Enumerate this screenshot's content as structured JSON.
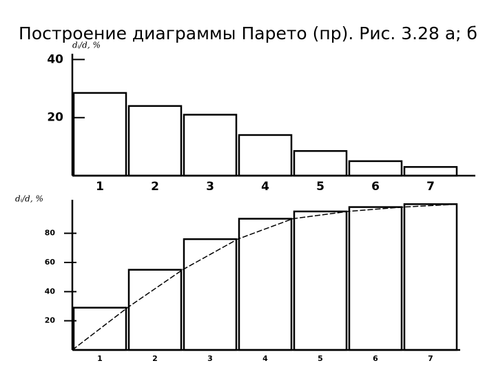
{
  "title": "Построение диаграммы Парето (пр). Рис. 3.28 а; б",
  "chart_data": [
    {
      "type": "bar",
      "y_label": "dᵢ/d, %",
      "categories": [
        "1",
        "2",
        "3",
        "4",
        "5",
        "6",
        "7"
      ],
      "values": [
        28.5,
        24,
        21,
        14,
        8.5,
        5,
        3
      ],
      "color": "#000000",
      "ylim": [
        0,
        42
      ],
      "yticks": [
        20,
        40
      ]
    },
    {
      "type": "bar",
      "y_label": "dᵢ/d, %",
      "categories": [
        "1",
        "2",
        "3",
        "4",
        "5",
        "6",
        "7"
      ],
      "values": [
        29,
        55,
        76,
        90,
        95,
        98,
        100
      ],
      "color": "#000000",
      "ylim": [
        0,
        103
      ],
      "yticks": [
        20,
        40,
        60,
        80
      ],
      "line": {
        "x": [
          0,
          1,
          2,
          3,
          4,
          5,
          6,
          7
        ],
        "values": [
          0,
          29,
          55,
          76,
          90,
          95,
          98,
          100
        ],
        "style": "dashed"
      }
    }
  ]
}
